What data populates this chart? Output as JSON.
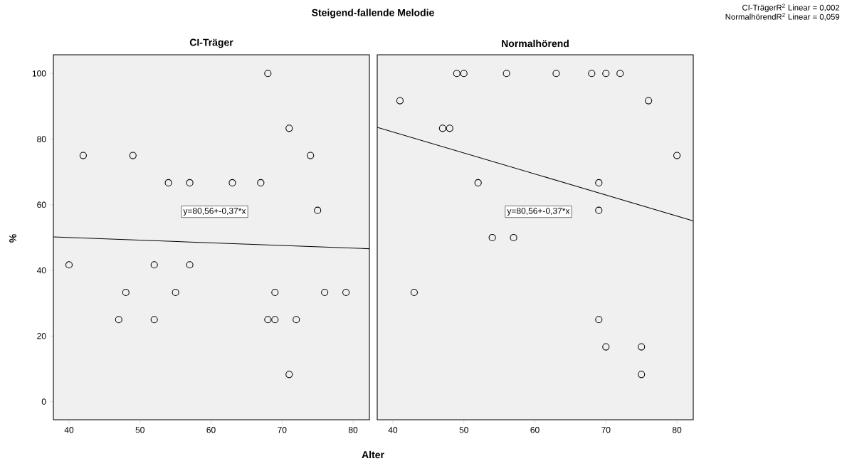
{
  "chart_data": [
    {
      "type": "scatter",
      "title": "Steigend-fallende Melodie",
      "subtitle": "CI-Träger",
      "xlabel": "Alter",
      "ylabel": "%",
      "marker": "circle",
      "xlim": [
        37.8,
        82.3
      ],
      "ylim": [
        -5.5,
        105.7
      ],
      "xticks": [
        40,
        50,
        60,
        70,
        80
      ],
      "yticks": [
        0,
        20,
        40,
        60,
        80,
        100
      ],
      "annotations": [
        "y=80,56+-0,37*x"
      ],
      "series": [
        {
          "color": "#000000",
          "x": [
            40,
            42,
            47,
            48,
            49,
            52,
            52,
            54,
            55,
            57,
            57,
            63,
            67,
            68,
            68,
            69,
            69,
            71,
            71,
            72,
            74,
            75,
            76,
            79
          ],
          "values": [
            41.7,
            75,
            25,
            33.3,
            75,
            41.7,
            25,
            66.7,
            33.3,
            66.7,
            41.7,
            66.7,
            66.7,
            100,
            25,
            33.3,
            25,
            83.3,
            8.3,
            25,
            75,
            58.3,
            33.3,
            33.3
          ]
        },
        {
          "type": "line",
          "marker": "none",
          "color": "#000000",
          "x": [
            37.8,
            82.3
          ],
          "values": [
            50.2,
            46.6
          ]
        }
      ]
    },
    {
      "type": "scatter",
      "subtitle": "Normalhörend",
      "marker": "circle",
      "xlim": [
        37.8,
        82.3
      ],
      "ylim": [
        -5.5,
        105.7
      ],
      "xticks": [
        40,
        50,
        60,
        70,
        80
      ],
      "yticks": [
        0,
        20,
        40,
        60,
        80,
        100
      ],
      "tick_labels": "x",
      "annotations": [
        "y=80,56+-0,37*x",
        "CI-TrägerR$^{2}$ Linear = 0,002",
        "NormalhörendR$^{2}$ Linear = 0,059"
      ],
      "series": [
        {
          "color": "#000000",
          "x": [
            41,
            43,
            47,
            48,
            49,
            50,
            52,
            54,
            56,
            57,
            63,
            68,
            69,
            69,
            69,
            70,
            70,
            72,
            75,
            75,
            76,
            80
          ],
          "values": [
            91.7,
            33.3,
            83.3,
            83.3,
            100,
            100,
            66.7,
            50,
            100,
            50,
            100,
            100,
            66.7,
            58.3,
            25,
            100,
            16.7,
            100,
            16.7,
            8.3,
            91.7,
            75
          ]
        },
        {
          "type": "line",
          "marker": "none",
          "color": "#000000",
          "x": [
            37.8,
            82.3
          ],
          "values": [
            83.6,
            55.1
          ]
        }
      ]
    }
  ]
}
